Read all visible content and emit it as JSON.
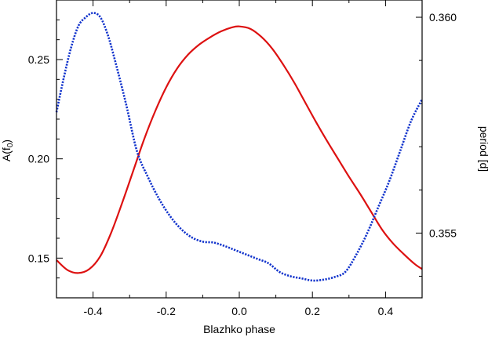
{
  "chart_data": {
    "type": "line",
    "title": "",
    "xlabel": "Blazhko phase",
    "ylabel_left": {
      "main": "A(f",
      "sub": "0",
      "close": ")"
    },
    "ylabel_right": "period [d]",
    "xlim": [
      -0.5,
      0.5
    ],
    "ylim_left": [
      0.13,
      0.28
    ],
    "ylim_right": [
      0.3535,
      0.3604
    ],
    "x_ticks": [
      -0.4,
      -0.2,
      0.0,
      0.2,
      0.4
    ],
    "x_tick_labels": [
      "-0.4",
      "-0.2",
      "0.0",
      "0.2",
      "0.4"
    ],
    "y_left_ticks": [
      0.15,
      0.2,
      0.25
    ],
    "y_left_tick_labels": [
      "0.15",
      "0.20",
      "0.25"
    ],
    "y_right_ticks": [
      0.355,
      0.36
    ],
    "y_right_tick_labels": [
      "0.355",
      "0.360"
    ],
    "grid": false,
    "series": [
      {
        "axis": "left",
        "style": "solid",
        "color": "#dd1111",
        "x": [
          -0.5,
          -0.47,
          -0.44,
          -0.41,
          -0.38,
          -0.35,
          -0.32,
          -0.29,
          -0.26,
          -0.23,
          -0.2,
          -0.17,
          -0.14,
          -0.11,
          -0.08,
          -0.05,
          -0.02,
          0.0,
          0.03,
          0.06,
          0.09,
          0.12,
          0.15,
          0.18,
          0.21,
          0.24,
          0.27,
          0.3,
          0.33,
          0.36,
          0.39,
          0.42,
          0.45,
          0.48,
          0.5
        ],
        "values": [
          0.149,
          0.144,
          0.1425,
          0.1445,
          0.151,
          0.163,
          0.178,
          0.194,
          0.21,
          0.224,
          0.236,
          0.2455,
          0.2525,
          0.2575,
          0.2612,
          0.2642,
          0.2662,
          0.2667,
          0.2655,
          0.2615,
          0.2555,
          0.2475,
          0.2385,
          0.2285,
          0.2185,
          0.209,
          0.2,
          0.191,
          0.1825,
          0.1735,
          0.1645,
          0.1575,
          0.152,
          0.147,
          0.1445
        ]
      },
      {
        "axis": "right",
        "style": "dotted",
        "color": "#1133cc",
        "x": [
          -0.5,
          -0.48,
          -0.46,
          -0.44,
          -0.42,
          -0.4,
          -0.38,
          -0.36,
          -0.34,
          -0.31,
          -0.28,
          -0.25,
          -0.22,
          -0.19,
          -0.16,
          -0.13,
          -0.1,
          -0.07,
          -0.04,
          -0.01,
          0.02,
          0.05,
          0.08,
          0.11,
          0.14,
          0.17,
          0.2,
          0.23,
          0.26,
          0.29,
          0.32,
          0.35,
          0.38,
          0.41,
          0.44,
          0.47,
          0.5
        ],
        "values": [
          0.3578,
          0.3586,
          0.3593,
          0.3598,
          0.36,
          0.3601,
          0.36,
          0.3596,
          0.359,
          0.358,
          0.3569,
          0.3563,
          0.3558,
          0.3554,
          0.3551,
          0.3549,
          0.3548,
          0.35478,
          0.3547,
          0.3546,
          0.3545,
          0.3544,
          0.3543,
          0.3541,
          0.354,
          0.35395,
          0.3539,
          0.35392,
          0.35398,
          0.3541,
          0.3545,
          0.355,
          0.3556,
          0.3562,
          0.3569,
          0.3576,
          0.3581
        ]
      }
    ]
  }
}
